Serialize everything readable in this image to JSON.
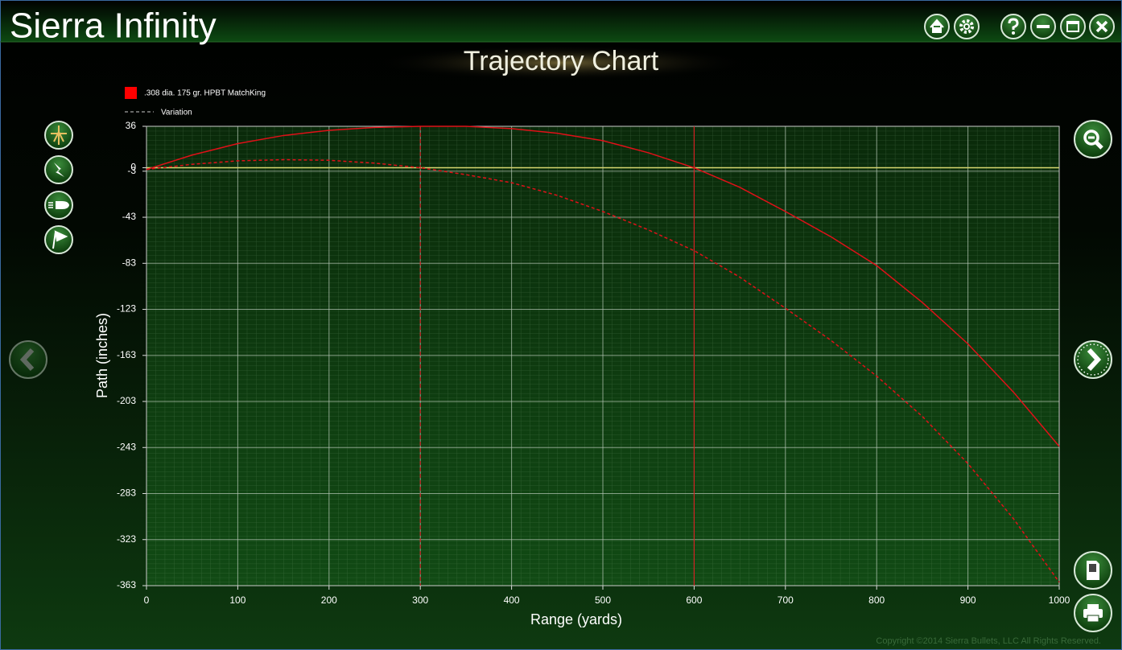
{
  "app": {
    "title": "Sierra Infinity",
    "copyright": "Copyright ©2014 Sierra Bullets, LLC  All Rights Reserved."
  },
  "chart_data": {
    "type": "line",
    "title": "Trajectory Chart",
    "x_label": "Range (yards)",
    "y_label": "Path (inches)",
    "x": [
      0,
      50,
      100,
      150,
      200,
      250,
      300,
      350,
      400,
      450,
      500,
      550,
      600,
      650,
      700,
      750,
      800,
      850,
      900,
      950,
      1000
    ],
    "series": [
      {
        "name": ".308 dia. 175 gr. HPBT MatchKing",
        "color": "#e01018",
        "style": "solid",
        "values": [
          -1.5,
          11,
          21,
          28,
          32.5,
          35,
          36,
          36,
          34,
          30,
          23.5,
          13,
          0,
          -17,
          -38,
          -60,
          -85,
          -117,
          -153,
          -195,
          -242
        ]
      },
      {
        "name": "Variation",
        "color": "#e01018",
        "style": "dashed",
        "values": [
          -1.5,
          3,
          6,
          7,
          6.5,
          4,
          0,
          -6,
          -13,
          -24,
          -38,
          -54,
          -72,
          -95,
          -122,
          -150,
          -181,
          -216,
          -257,
          -305,
          -360
        ]
      }
    ],
    "reference_lines": [
      {
        "x": 600,
        "style": "solid"
      },
      {
        "x": 300,
        "style": "dashed"
      }
    ],
    "zero_line": {
      "y": 0,
      "color": "#d8d870"
    },
    "xlim": [
      0,
      1000
    ],
    "xticks": [
      0,
      100,
      200,
      300,
      400,
      500,
      600,
      700,
      800,
      900,
      1000
    ],
    "ylim": [
      -363,
      36
    ],
    "yticks": [
      36,
      0,
      -3,
      -43,
      -83,
      -123,
      -163,
      -203,
      -243,
      -283,
      -323,
      -363
    ],
    "grid": true,
    "minor_grid": true
  }
}
